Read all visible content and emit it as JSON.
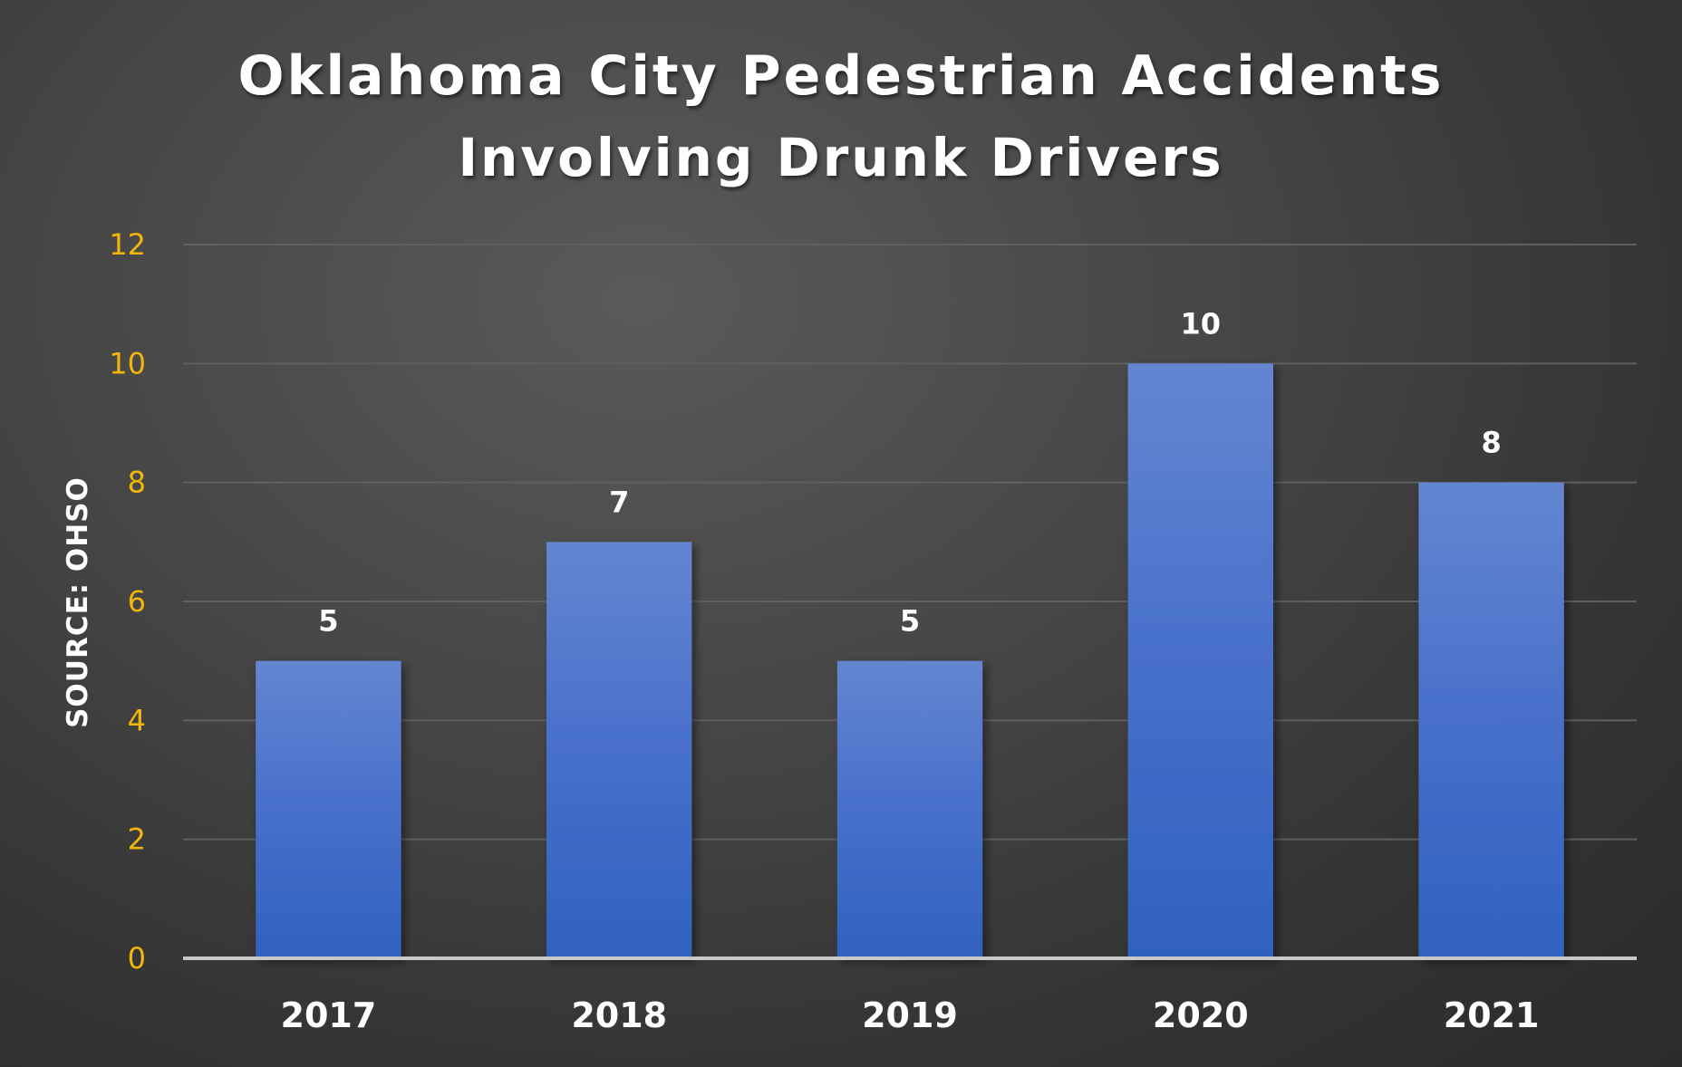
{
  "chart_data": {
    "type": "bar",
    "title": "Oklahoma City Pedestrian Accidents Involving Drunk Drivers",
    "title_lines": [
      "Oklahoma City Pedestrian Accidents",
      "Involving Drunk Drivers"
    ],
    "ylabel": "SOURCE: OHSO",
    "xlabel": "",
    "categories": [
      "2017",
      "2018",
      "2019",
      "2020",
      "2021"
    ],
    "values": [
      5,
      7,
      5,
      10,
      8
    ],
    "data_labels": [
      "5",
      "7",
      "5",
      "10",
      "8"
    ],
    "ylim": [
      0,
      12
    ],
    "yticks": [
      "0",
      "2",
      "4",
      "6",
      "8",
      "10",
      "12"
    ],
    "ytick_values": [
      0,
      2,
      4,
      6,
      8,
      10,
      12
    ],
    "grid": true,
    "legend": "none",
    "colors": {
      "bar_top": "#6585d0",
      "bar_bottom": "#2f62bf",
      "y_tick_text": "#f2b50a",
      "text": "#ffffff",
      "gridline": "#5f5f5f",
      "baseline": "#c8c8c8"
    }
  }
}
